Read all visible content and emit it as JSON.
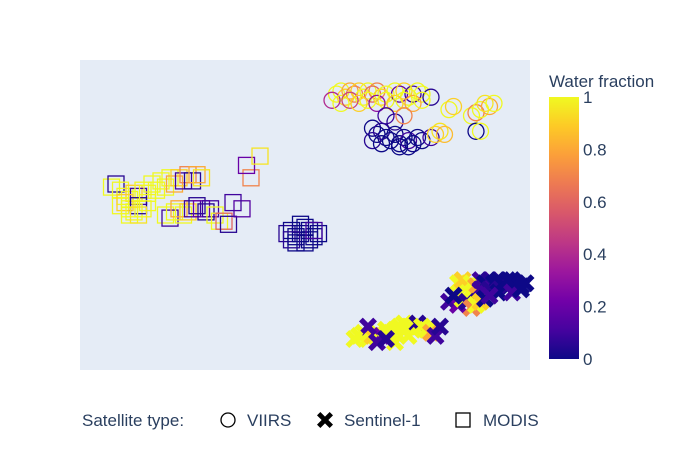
{
  "chart_data": {
    "type": "scatter",
    "title": "",
    "xlabel": "",
    "ylabel": "",
    "x_axis_visible": false,
    "y_axis_visible": false,
    "grid": false,
    "xlim": [
      0,
      100
    ],
    "ylim": [
      0,
      100
    ],
    "colorbar": {
      "title": "Water fraction",
      "min": 0,
      "max": 1,
      "ticks": [
        "0",
        "0.2",
        "0.4",
        "0.6",
        "0.8",
        "1"
      ],
      "colorscale": [
        "#0d0887",
        "#46039f",
        "#7201a8",
        "#9c179e",
        "#bd3786",
        "#d8576b",
        "#ed7953",
        "#fb9f3a",
        "#fdca26",
        "#f0f921"
      ]
    },
    "legend": {
      "title": "Satellite type:",
      "position": "bottom",
      "items": [
        {
          "name": "VIIRS",
          "symbol": "circle-open"
        },
        {
          "name": "Sentinel-1",
          "symbol": "x"
        },
        {
          "name": "MODIS",
          "symbol": "square-open"
        }
      ]
    },
    "series": [
      {
        "name": "VIIRS",
        "symbol": "circle-open",
        "points": [
          [
            57,
            89,
            1
          ],
          [
            58,
            90,
            1
          ],
          [
            59,
            88,
            0.9
          ],
          [
            60,
            90,
            0.8
          ],
          [
            61,
            89,
            0.7
          ],
          [
            62,
            90,
            0.9
          ],
          [
            63,
            88,
            1
          ],
          [
            64,
            90,
            1
          ],
          [
            65,
            89,
            0.6
          ],
          [
            66,
            90,
            0.7
          ],
          [
            67,
            88,
            0.9
          ],
          [
            68,
            89,
            1
          ],
          [
            70,
            90,
            1
          ],
          [
            71,
            89,
            0.2
          ],
          [
            72,
            90,
            0.9
          ],
          [
            73,
            88,
            1
          ],
          [
            74,
            89,
            0.1
          ],
          [
            75,
            90,
            1
          ],
          [
            76,
            89,
            1
          ],
          [
            78,
            88,
            0.05
          ],
          [
            56,
            87,
            0.4
          ],
          [
            58,
            86,
            1
          ],
          [
            60,
            87,
            0.5
          ],
          [
            62,
            86,
            0.9
          ],
          [
            64,
            87,
            1
          ],
          [
            66,
            86,
            0.3
          ],
          [
            68,
            87,
            1
          ],
          [
            70,
            86,
            0.9
          ],
          [
            72,
            87,
            1
          ],
          [
            74,
            86,
            0.8
          ],
          [
            76,
            87,
            1
          ],
          [
            68,
            82,
            0.1
          ],
          [
            70,
            80,
            0.05
          ],
          [
            72,
            82,
            0.7
          ],
          [
            82,
            84,
            1
          ],
          [
            83,
            85,
            0.9
          ],
          [
            87,
            82,
            1
          ],
          [
            88,
            83,
            0.7
          ],
          [
            89,
            84,
            1
          ],
          [
            91,
            85,
            0.8
          ],
          [
            92,
            86,
            1
          ],
          [
            90,
            86,
            0.95
          ],
          [
            65,
            78,
            0
          ],
          [
            66,
            76,
            0
          ],
          [
            67,
            77,
            0.05
          ],
          [
            68,
            75,
            0
          ],
          [
            69,
            74,
            0
          ],
          [
            70,
            76,
            0
          ],
          [
            71,
            73,
            0
          ],
          [
            72,
            75,
            0
          ],
          [
            73,
            74,
            0.1
          ],
          [
            74,
            73,
            0
          ],
          [
            75,
            75,
            0
          ],
          [
            76,
            74,
            0
          ],
          [
            71,
            72,
            0
          ],
          [
            73,
            72,
            0
          ],
          [
            65,
            74,
            0.05
          ],
          [
            67,
            73,
            0
          ],
          [
            78,
            75,
            0.1
          ],
          [
            79,
            76,
            0.9
          ],
          [
            80,
            77,
            0.95
          ],
          [
            81,
            76,
            0.85
          ],
          [
            88,
            77,
            0
          ],
          [
            89,
            77,
            1
          ]
        ]
      },
      {
        "name": "Sentinel-1",
        "symbol": "x",
        "points": [
          [
            84,
            28,
            1
          ],
          [
            86,
            27,
            1
          ],
          [
            85,
            29,
            0.9
          ],
          [
            87,
            28,
            1
          ],
          [
            88,
            27,
            0.8
          ],
          [
            89,
            29,
            0.1
          ],
          [
            90,
            28,
            0
          ],
          [
            91,
            29,
            0.05
          ],
          [
            92,
            28,
            0
          ],
          [
            93,
            27,
            0
          ],
          [
            94,
            28,
            0
          ],
          [
            95,
            27,
            0.05
          ],
          [
            96,
            29,
            0
          ],
          [
            97,
            28,
            0
          ],
          [
            98,
            27,
            0
          ],
          [
            99,
            28,
            0
          ],
          [
            93,
            29,
            0
          ],
          [
            95,
            29,
            0
          ],
          [
            89,
            26,
            0.1
          ],
          [
            91,
            26,
            0.05
          ],
          [
            93,
            25,
            0
          ],
          [
            96,
            25,
            0.1
          ],
          [
            98,
            26,
            0
          ],
          [
            82,
            22,
            0.1
          ],
          [
            84,
            21,
            0.2
          ],
          [
            85,
            23,
            1
          ],
          [
            86,
            22,
            0.05
          ],
          [
            87,
            20,
            0.7
          ],
          [
            88,
            21,
            1
          ],
          [
            89,
            22,
            0.9
          ],
          [
            90,
            23,
            0
          ],
          [
            91,
            24,
            0.1
          ],
          [
            83,
            24,
            0
          ],
          [
            62,
            11,
            1
          ],
          [
            63,
            12,
            1
          ],
          [
            64,
            10,
            1
          ],
          [
            65,
            11,
            0.9
          ],
          [
            66,
            12,
            1
          ],
          [
            67,
            11,
            0.2
          ],
          [
            68,
            13,
            1
          ],
          [
            69,
            12,
            1
          ],
          [
            70,
            13,
            1
          ],
          [
            71,
            14,
            1
          ],
          [
            72,
            15,
            1
          ],
          [
            73,
            14,
            1
          ],
          [
            74,
            13,
            1
          ],
          [
            75,
            15,
            0.05
          ],
          [
            76,
            14,
            1
          ],
          [
            77,
            13,
            1
          ],
          [
            78,
            12,
            0.8
          ],
          [
            79,
            11,
            0.1
          ],
          [
            80,
            14,
            0.05
          ],
          [
            73,
            11,
            1
          ],
          [
            70,
            9,
            1
          ],
          [
            66,
            9,
            0.1
          ],
          [
            64,
            14,
            0.1
          ],
          [
            61,
            10,
            1
          ],
          [
            68,
            10,
            0.05
          ]
        ]
      },
      {
        "name": "MODIS",
        "symbol": "square-open",
        "points": [
          [
            7,
            59,
            1
          ],
          [
            8,
            60,
            0.05
          ],
          [
            9,
            58,
            1
          ],
          [
            10,
            56,
            1
          ],
          [
            11,
            55,
            1
          ],
          [
            12,
            57,
            0.9
          ],
          [
            13,
            56,
            0.1
          ],
          [
            14,
            58,
            1
          ],
          [
            15,
            57,
            1
          ],
          [
            16,
            60,
            1
          ],
          [
            17,
            58,
            1
          ],
          [
            18,
            61,
            1
          ],
          [
            19,
            59,
            1
          ],
          [
            20,
            62,
            1
          ],
          [
            21,
            60,
            0.8
          ],
          [
            22,
            62,
            0.9
          ],
          [
            23,
            61,
            0.1
          ],
          [
            24,
            63,
            0.7
          ],
          [
            25,
            61,
            0.05
          ],
          [
            26,
            63,
            0.8
          ],
          [
            27,
            62,
            0.95
          ],
          [
            9,
            53,
            1
          ],
          [
            10,
            54,
            0.9
          ],
          [
            11,
            52,
            1
          ],
          [
            12,
            51,
            1
          ],
          [
            13,
            53,
            0.05
          ],
          [
            14,
            52,
            1
          ],
          [
            15,
            54,
            1
          ],
          [
            11,
            50,
            1
          ],
          [
            13,
            50,
            0.95
          ],
          [
            19,
            50,
            1
          ],
          [
            20,
            49,
            0.1
          ],
          [
            21,
            51,
            1
          ],
          [
            22,
            52,
            0.8
          ],
          [
            23,
            50,
            1
          ],
          [
            24,
            51,
            0.9
          ],
          [
            25,
            52,
            0.1
          ],
          [
            26,
            53,
            0.05
          ],
          [
            27,
            52,
            0.2
          ],
          [
            28,
            51,
            0.05
          ],
          [
            29,
            52,
            0.1
          ],
          [
            30,
            50,
            1
          ],
          [
            31,
            48,
            1
          ],
          [
            32,
            48,
            0.6
          ],
          [
            33,
            47,
            0.05
          ],
          [
            36,
            52,
            0.15
          ],
          [
            38,
            62,
            0.7
          ],
          [
            37,
            66,
            0.2
          ],
          [
            40,
            69,
            0.95
          ],
          [
            34,
            54,
            0.1
          ],
          [
            46,
            44,
            0.05
          ],
          [
            47,
            45,
            0
          ],
          [
            48,
            43,
            0
          ],
          [
            49,
            44,
            0
          ],
          [
            50,
            46,
            0
          ],
          [
            51,
            45,
            0
          ],
          [
            52,
            43,
            0
          ],
          [
            53,
            44,
            0
          ],
          [
            48,
            41,
            0
          ],
          [
            50,
            41,
            0
          ],
          [
            49,
            47,
            0
          ],
          [
            51,
            42,
            0
          ],
          [
            47,
            42,
            0.05
          ],
          [
            52,
            45,
            0.1
          ]
        ]
      }
    ]
  }
}
